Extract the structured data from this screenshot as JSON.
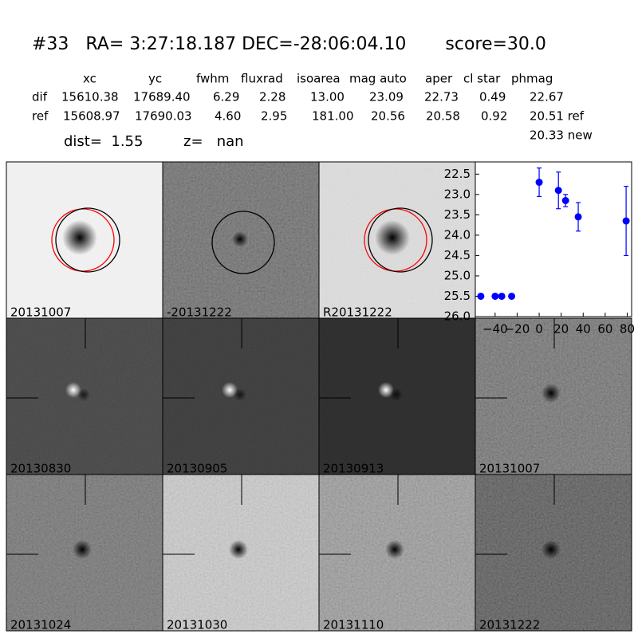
{
  "header": {
    "title": "#33   RA= 3:27:18.187 DEC=-28:06:04.10       score=30.0",
    "dist": "dist=  1.55",
    "z": "z=   nan"
  },
  "table": {
    "columns": [
      "xc",
      "yc",
      "fwhm",
      "fluxrad",
      "isoarea",
      "mag auto",
      "aper",
      "cl star",
      "phmag"
    ],
    "rows": [
      [
        "dif",
        "15610.38",
        "17689.40",
        "6.29",
        "2.28",
        "13.00",
        "23.09",
        "22.73",
        "0.49",
        "22.67"
      ],
      [
        "ref",
        "15608.97",
        "17690.03",
        "4.60",
        "2.95",
        "181.00",
        "20.56",
        "20.58",
        "0.92",
        "20.51 ref"
      ]
    ],
    "extra": "20.33 new"
  },
  "panels": [
    {
      "label": "20131007"
    },
    {
      "label": "-20131222"
    },
    {
      "label": "R20131222"
    },
    {
      "label": "20130830"
    },
    {
      "label": "20130905"
    },
    {
      "label": "20130913"
    },
    {
      "label": "20131007",
      "color": "#ff0000"
    },
    {
      "label": "20131024"
    },
    {
      "label": "20131030"
    },
    {
      "label": "20131110"
    },
    {
      "label": "20131222"
    }
  ],
  "chart_data": {
    "type": "scatter",
    "color": "#0000ff",
    "x": [
      -53,
      -40,
      -34,
      -25,
      0,
      17.5,
      24,
      35.5,
      79
    ],
    "values": [
      25.5,
      25.5,
      25.5,
      25.5,
      22.7,
      22.9,
      23.15,
      23.55,
      23.65
    ],
    "errors": [
      0.05,
      0.05,
      0.05,
      0.05,
      0.35,
      0.45,
      0.15,
      0.35,
      0.85
    ],
    "xlim": [
      -58,
      84
    ],
    "ylim": [
      26.0,
      22.2
    ],
    "xticks": [
      {
        "value": -40,
        "label": "−40"
      },
      {
        "value": -20,
        "label": "−20"
      },
      0,
      20,
      40,
      60,
      80
    ],
    "yticks": [
      22.5,
      {
        "value": 23,
        "label": "23.0"
      },
      23.5,
      {
        "value": 24,
        "label": "24.0"
      },
      24.5,
      {
        "value": 25,
        "label": "25.0"
      },
      25.5,
      {
        "value": 26,
        "label": "26.0"
      }
    ]
  }
}
